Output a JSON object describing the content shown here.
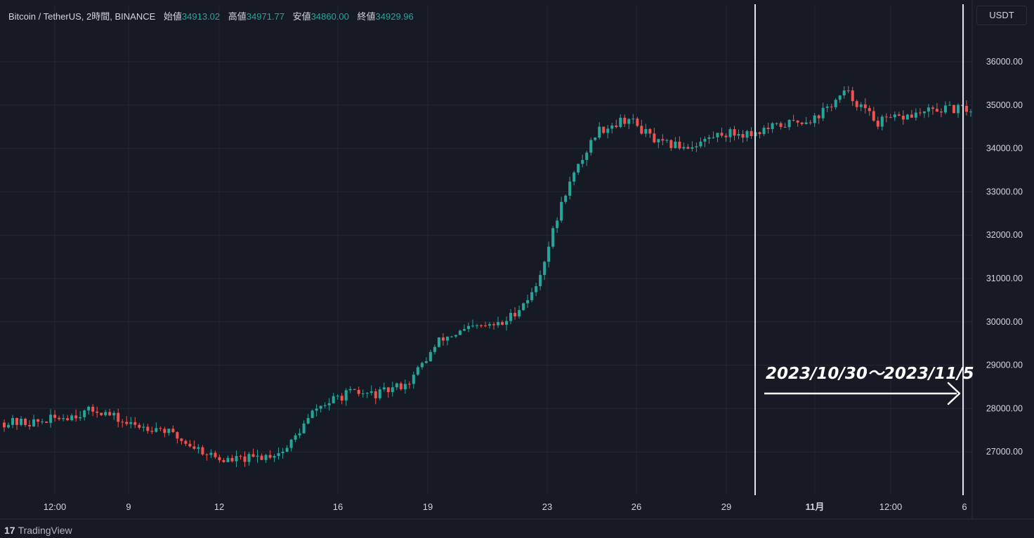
{
  "header": {
    "symbol": "Bitcoin / TetherUS, 2時間, BINANCE",
    "open_label": "始値",
    "open": "34913.02",
    "high_label": "高値",
    "high": "34971.77",
    "low_label": "安値",
    "low": "34860.00",
    "close_label": "終値",
    "close": "34929.96"
  },
  "currency_button": "USDT",
  "footer": {
    "logo": "17",
    "brand": "TradingView"
  },
  "annotation": {
    "text": "2023/10/30〜2023/11/5"
  },
  "colors": {
    "background": "#161a25",
    "up": "#26a69a",
    "down": "#ef5350",
    "grid": "#232734",
    "text": "#d1d4dc"
  },
  "chart_data": {
    "type": "candlestick",
    "ylim": [
      26000,
      36500
    ],
    "y_ticks": [
      "27000.00",
      "28000.00",
      "29000.00",
      "30000.00",
      "31000.00",
      "32000.00",
      "33000.00",
      "34000.00",
      "35000.00",
      "36000.00"
    ],
    "x_ticks": [
      "12:00",
      "9",
      "12",
      "16",
      "19",
      "23",
      "26",
      "29",
      "11月",
      "12:00",
      "6"
    ],
    "anchors": [
      [
        27750,
        27600
      ],
      [
        27850,
        27500
      ],
      [
        27950,
        27700
      ],
      [
        28000,
        27950
      ],
      [
        27850,
        27400
      ],
      [
        27500,
        27600
      ],
      [
        27300,
        27000
      ],
      [
        26850,
        26750
      ],
      [
        26900,
        26800
      ],
      [
        26950,
        27100
      ],
      [
        27500,
        28500
      ],
      [
        28300,
        28400
      ],
      [
        28400,
        28250
      ],
      [
        28600,
        28650
      ],
      [
        29500,
        29700
      ],
      [
        29900,
        29800
      ],
      [
        30000,
        29900
      ],
      [
        30800,
        30600
      ],
      [
        32000,
        34000
      ],
      [
        34300,
        34500
      ],
      [
        34800,
        34600
      ],
      [
        34200,
        34000
      ],
      [
        34000,
        34100
      ],
      [
        34200,
        34500
      ],
      [
        34300,
        34400
      ],
      [
        34500,
        34600
      ],
      [
        34400,
        35000
      ],
      [
        35400,
        35200
      ],
      [
        34700,
        34500
      ],
      [
        34700,
        34800
      ],
      [
        34800,
        35000
      ],
      [
        34900,
        34900
      ]
    ],
    "vertical_markers": [
      "2023/10/30",
      "2023/11/5"
    ]
  }
}
